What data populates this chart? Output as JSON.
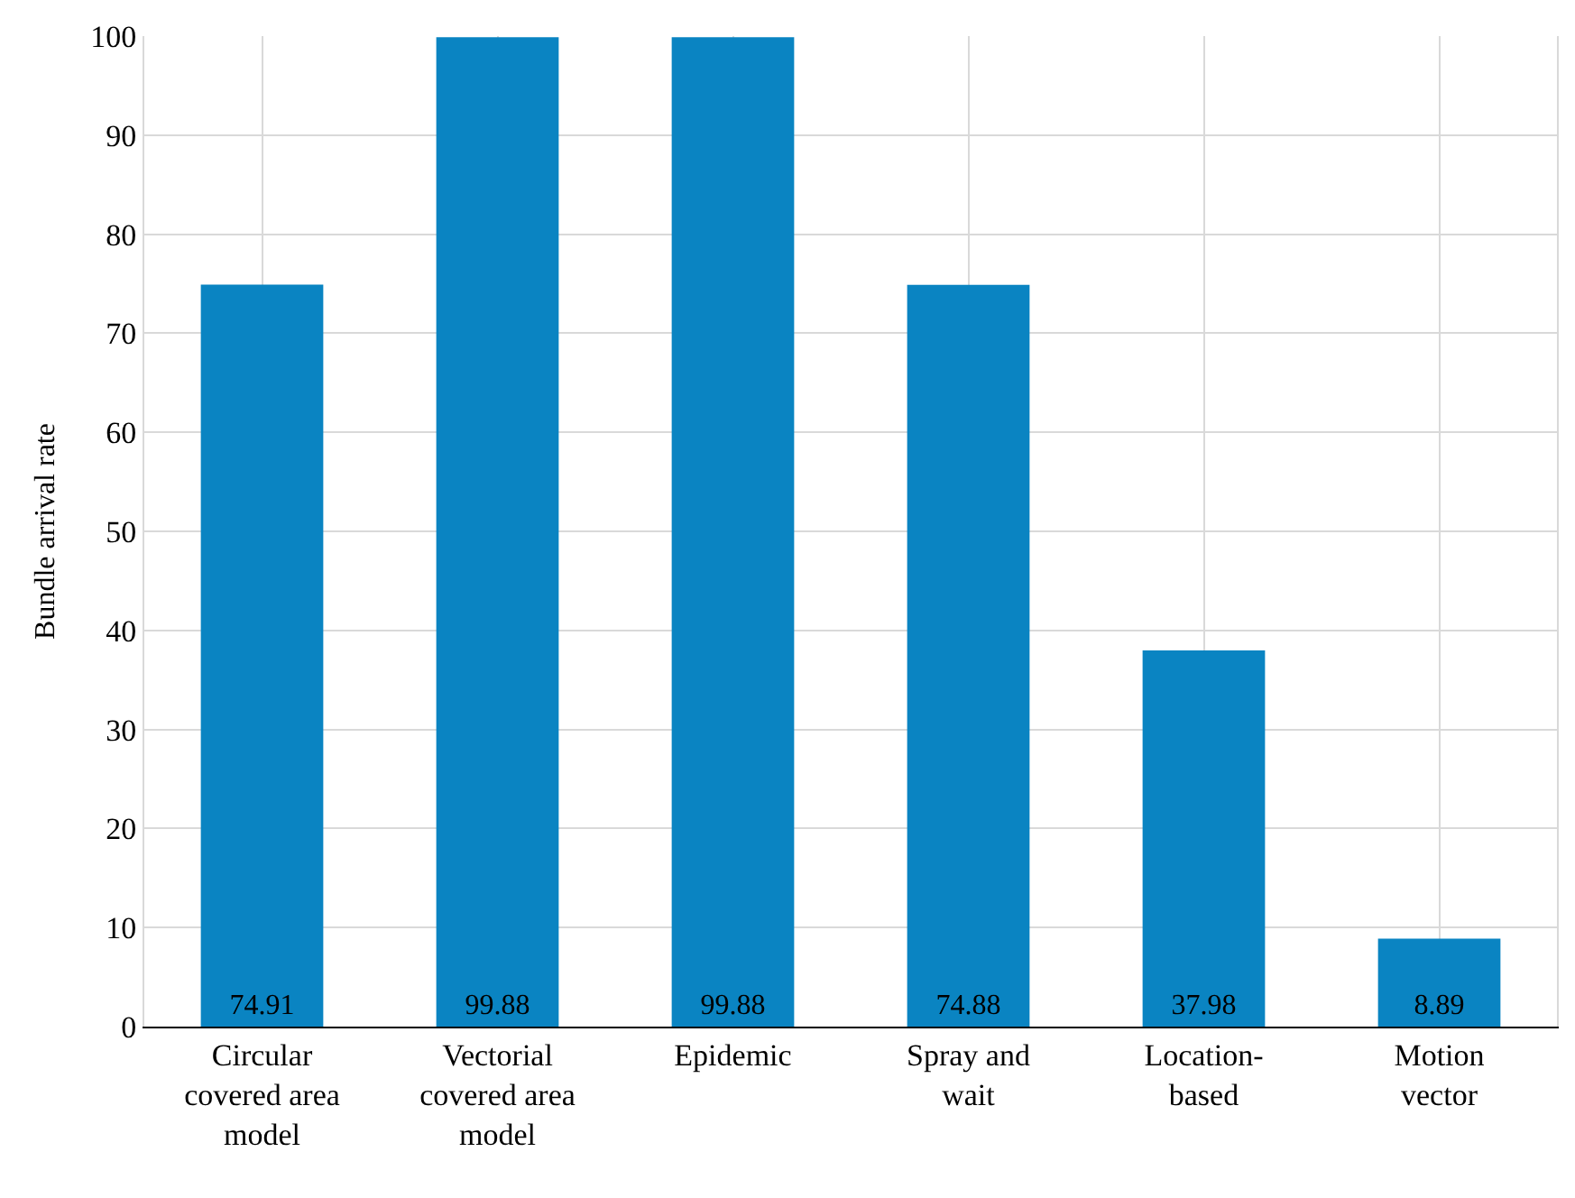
{
  "chart_data": {
    "type": "bar",
    "ylabel": "Bundle arrival rate",
    "categories": [
      "Circular covered area model",
      "Vectorial covered area model",
      "Epidemic",
      "Spray and wait",
      "Location-based",
      "Motion vector"
    ],
    "values": [
      74.91,
      99.88,
      99.88,
      74.88,
      37.98,
      8.89
    ],
    "color": "#0a84c2",
    "ylim": [
      0,
      100
    ],
    "yticks": [
      0,
      10,
      20,
      30,
      40,
      50,
      60,
      70,
      80,
      90,
      100
    ],
    "grid": true,
    "data_labels": true
  }
}
